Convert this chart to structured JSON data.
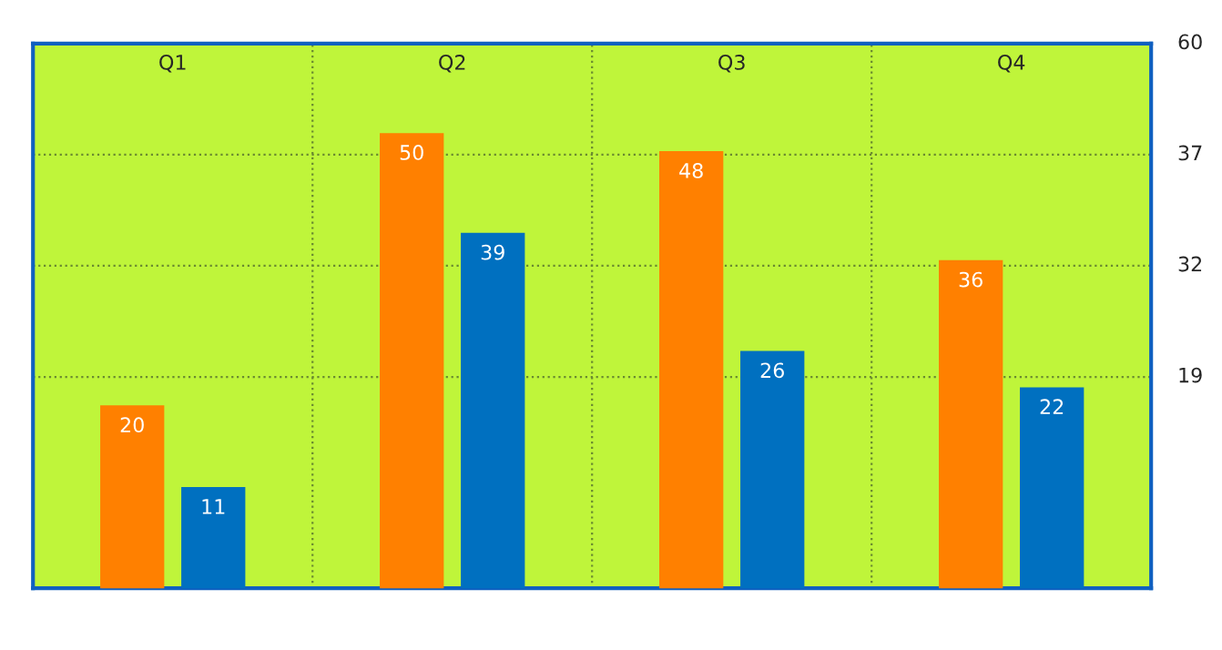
{
  "chart_data": {
    "type": "bar",
    "categories": [
      "Q1",
      "Q2",
      "Q3",
      "Q4"
    ],
    "series": [
      {
        "color": "#ff8000",
        "values": [
          20,
          50,
          48,
          36
        ]
      },
      {
        "color": "#0070c0",
        "values": [
          11,
          39,
          26,
          22
        ]
      }
    ],
    "data_labels": true,
    "annotations": [
      "60",
      "37",
      "32",
      "19"
    ],
    "grid": true
  }
}
